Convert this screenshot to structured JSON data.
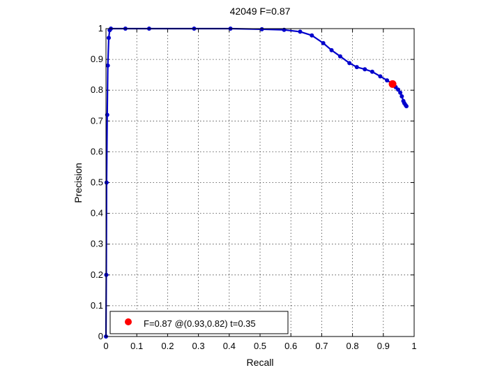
{
  "chart_data": {
    "type": "line",
    "title": "42049 F=0.87",
    "xlabel": "Recall",
    "ylabel": "Precision",
    "xlim": [
      0,
      1
    ],
    "ylim": [
      0,
      1
    ],
    "x_ticks": [
      "0",
      "0.1",
      "0.2",
      "0.3",
      "0.4",
      "0.5",
      "0.6",
      "0.7",
      "0.8",
      "0.9",
      "1"
    ],
    "y_ticks": [
      "0",
      "0.1",
      "0.2",
      "0.3",
      "0.4",
      "0.5",
      "0.6",
      "0.7",
      "0.8",
      "0.9",
      "1"
    ],
    "grid": true,
    "series": [
      {
        "color": "#0000cc",
        "x": [
          0.0,
          0.001,
          0.002,
          0.004,
          0.006,
          0.009,
          0.012,
          0.016,
          0.063,
          0.14,
          0.286,
          0.404,
          0.506,
          0.578,
          0.63,
          0.668,
          0.705,
          0.732,
          0.76,
          0.79,
          0.814,
          0.84,
          0.864,
          0.89,
          0.912,
          0.928,
          0.94,
          0.948,
          0.955,
          0.96,
          0.965,
          0.968,
          0.972,
          0.975
        ],
        "y": [
          0.0,
          0.2,
          0.5,
          0.72,
          0.88,
          0.97,
          0.995,
          1.0,
          1.0,
          1.0,
          1.0,
          1.0,
          0.998,
          0.996,
          0.99,
          0.978,
          0.953,
          0.93,
          0.91,
          0.888,
          0.875,
          0.868,
          0.86,
          0.845,
          0.832,
          0.822,
          0.81,
          0.802,
          0.792,
          0.78,
          0.765,
          0.758,
          0.752,
          0.748
        ]
      }
    ],
    "best_point": {
      "x": 0.93,
      "y": 0.82,
      "color": "#ff0000"
    },
    "legend": {
      "position": "bottom-left",
      "text": "F=0.87 @(0.93,0.82) t=0.35"
    }
  }
}
